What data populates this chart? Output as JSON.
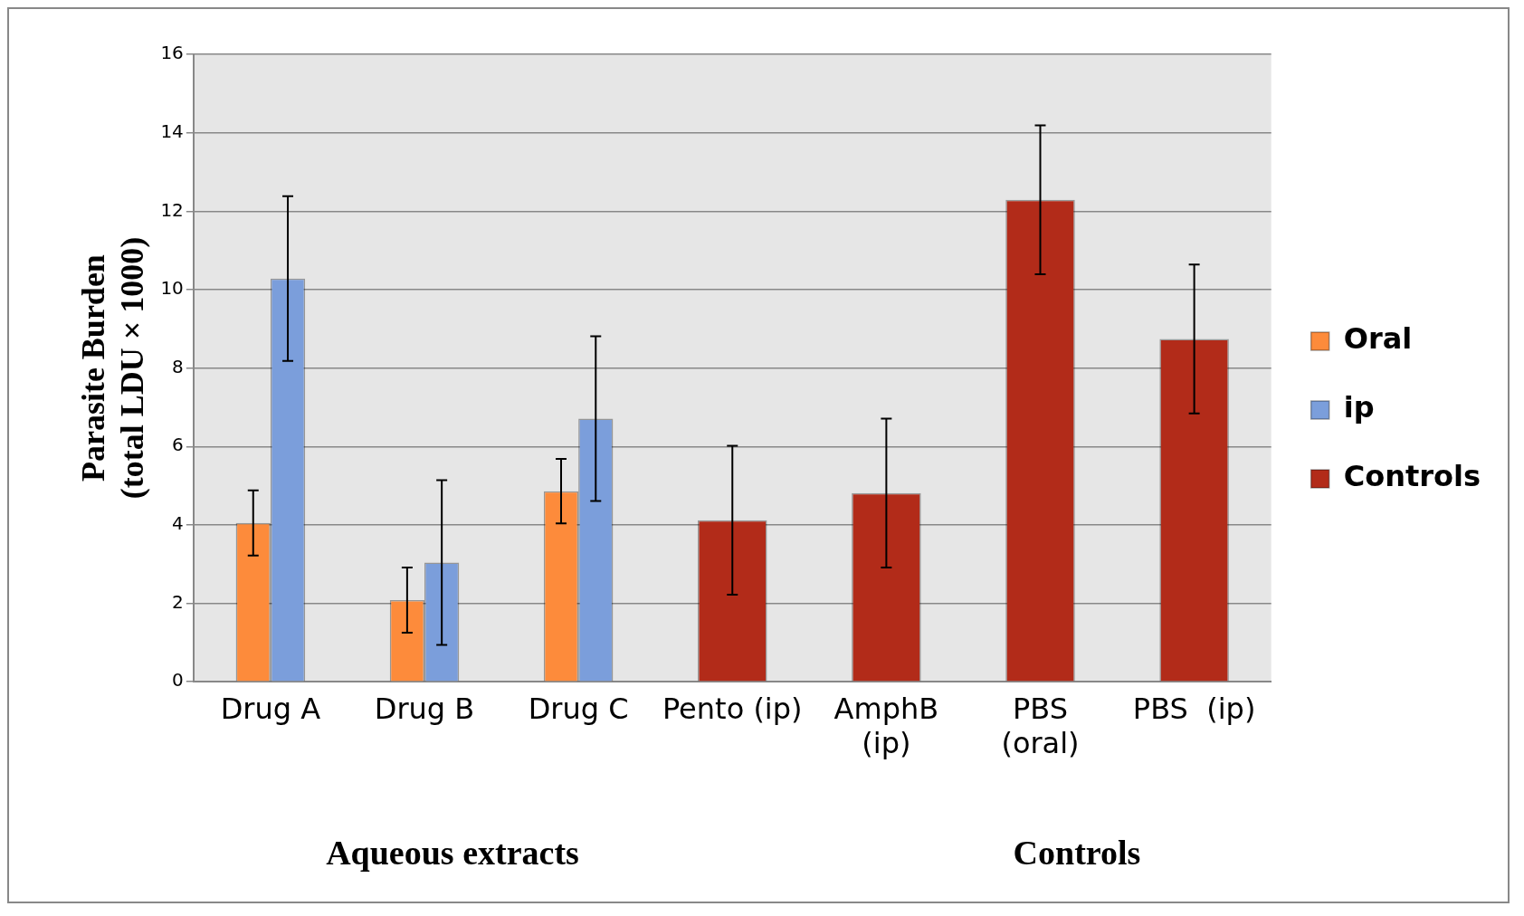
{
  "chart_data": {
    "type": "bar",
    "ylabel": "Parasite Burden\n(total LDU × 1000)",
    "categories": [
      "Drug A",
      "Drug B",
      "Drug C",
      "Pento (ip)",
      "AmphB\n(ip)",
      "PBS\n(oral)",
      "PBS  (ip)"
    ],
    "series": [
      {
        "name": "Oral",
        "color": "#fd8b3b",
        "values": [
          4.05,
          2.08,
          4.86,
          null,
          null,
          null,
          null
        ],
        "errors": [
          0.83,
          0.83,
          0.82,
          null,
          null,
          null,
          null
        ]
      },
      {
        "name": "ip",
        "color": "#7b9edb",
        "values": [
          10.28,
          3.04,
          6.71,
          null,
          null,
          null,
          null
        ],
        "errors": [
          2.1,
          2.1,
          2.1,
          null,
          null,
          null,
          null
        ]
      },
      {
        "name": "Controls",
        "color": "#b22b19",
        "values": [
          null,
          null,
          null,
          4.12,
          4.81,
          12.29,
          8.74
        ],
        "errors": [
          null,
          null,
          null,
          1.9,
          1.9,
          1.9,
          1.9
        ]
      }
    ],
    "ylim": [
      0,
      16
    ],
    "yticks": [
      0,
      2,
      4,
      6,
      8,
      10,
      12,
      14,
      16
    ],
    "grid": "y",
    "legend": "right",
    "annotations": [
      "Aqueous extracts",
      "Controls"
    ]
  }
}
